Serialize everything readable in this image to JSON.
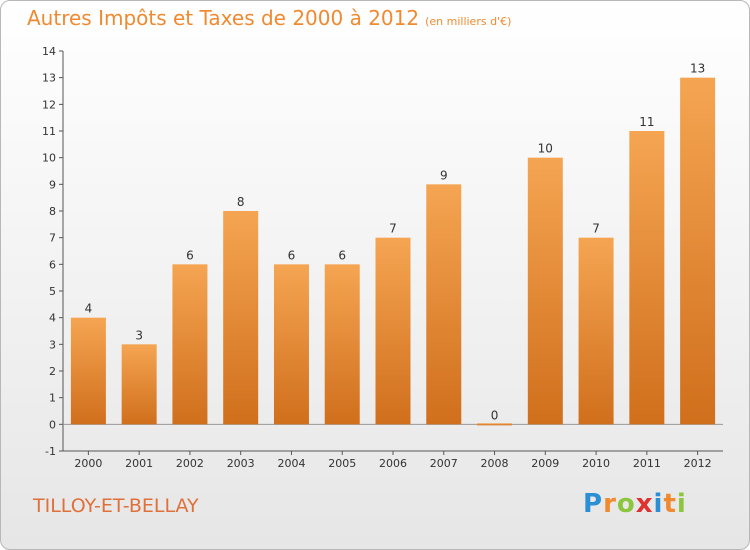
{
  "title": "Autres Impôts et Taxes de 2000 à 2012",
  "subtitle": "(en milliers d'€)",
  "commune": "TILLOY-ET-BELLAY",
  "logo": {
    "text": "Proxiti",
    "letters": [
      "P",
      "r",
      "o",
      "x",
      "i",
      "t",
      "i"
    ],
    "colors": [
      "#2b8fd6",
      "#f08a30",
      "#8cc63f",
      "#e03030",
      "#2b8fd6",
      "#f08a30",
      "#8cc63f"
    ]
  },
  "colors": {
    "bar_top": "#f5a552",
    "bar_bottom": "#d06f1c",
    "title": "#f08a30",
    "commune": "#e0703a"
  },
  "chart_data": {
    "type": "bar",
    "categories": [
      "2000",
      "2001",
      "2002",
      "2003",
      "2004",
      "2005",
      "2006",
      "2007",
      "2008",
      "2009",
      "2010",
      "2011",
      "2012"
    ],
    "values": [
      4,
      3,
      6,
      8,
      6,
      6,
      7,
      9,
      0,
      10,
      7,
      11,
      13
    ],
    "data_labels": [
      "4",
      "3",
      "6",
      "8",
      "6",
      "6",
      "7",
      "9",
      "0",
      "10",
      "7",
      "11",
      "13"
    ],
    "ylim": [
      -1,
      14
    ],
    "yticks": [
      "-1",
      "0",
      "1",
      "2",
      "3",
      "4",
      "5",
      "6",
      "7",
      "8",
      "9",
      "10",
      "11",
      "12",
      "13",
      "14"
    ],
    "grid": false
  }
}
